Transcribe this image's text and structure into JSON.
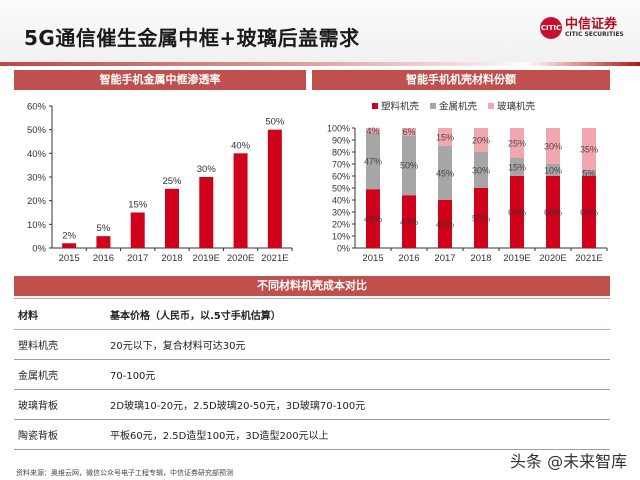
{
  "header": {
    "title": "5G通信催生金属中框+玻璃后盖需求",
    "logo_cn": "中信证券",
    "logo_en": "CITIC SECURITIES",
    "logo_mark": "CITIC"
  },
  "colors": {
    "accent_red": "#c0504d",
    "bar_red": "#d0021b",
    "metal_gray": "#a6a6a6",
    "glass_pink": "#f2a7b0"
  },
  "left_panel": {
    "title": "智能手机金属中框渗透率"
  },
  "right_panel": {
    "title": "智能手机机壳材料份额",
    "legend": [
      "塑料机壳",
      "金属机壳",
      "玻璃机壳"
    ]
  },
  "chart_data": [
    {
      "type": "bar",
      "title": "智能手机金属中框渗透率",
      "categories": [
        "2015",
        "2016",
        "2017",
        "2018",
        "2019E",
        "2020E",
        "2021E"
      ],
      "values": [
        2,
        5,
        15,
        25,
        30,
        40,
        50
      ],
      "data_labels": [
        "2%",
        "5%",
        "15%",
        "25%",
        "30%",
        "40%",
        "50%"
      ],
      "xlabel": "",
      "ylabel": "",
      "ylim": [
        0,
        60
      ],
      "yticks": [
        "0%",
        "10%",
        "20%",
        "30%",
        "40%",
        "50%",
        "60%"
      ],
      "grid": false,
      "legend": null
    },
    {
      "type": "bar",
      "stacked": true,
      "title": "智能手机机壳材料份额",
      "categories": [
        "2015",
        "2016",
        "2017",
        "2018",
        "2019E",
        "2020E",
        "2021E"
      ],
      "series": [
        {
          "name": "塑料机壳",
          "values": [
            49,
            44,
            40,
            50,
            60,
            60,
            60
          ]
        },
        {
          "name": "金属机壳",
          "values": [
            47,
            50,
            45,
            30,
            15,
            10,
            5
          ]
        },
        {
          "name": "玻璃机壳",
          "values": [
            4,
            6,
            15,
            20,
            25,
            30,
            35
          ]
        }
      ],
      "ylim": [
        0,
        100
      ],
      "yticks": [
        "0%",
        "10%",
        "20%",
        "30%",
        "40%",
        "50%",
        "60%",
        "70%",
        "80%",
        "90%",
        "100%"
      ],
      "legend_position": "top",
      "grid": false
    }
  ],
  "table": {
    "title": "不同材料机壳成本对比",
    "headers": [
      "材料",
      "基本价格（人民币，以.5寸手机估算）"
    ],
    "rows": [
      [
        "塑料机壳",
        "20元以下，复合材料可达30元"
      ],
      [
        "金属机壳",
        "70-100元"
      ],
      [
        "玻璃背板",
        "2D玻璃10-20元，2.5D玻璃20-50元，3D玻璃70-100元"
      ],
      [
        "陶瓷背板",
        "平板60元，2.5D造型100元，3D造型200元以上"
      ]
    ]
  },
  "footer": {
    "source": "资料来源：奥维云网，微信公众号电子工程专辑，中信证券研究部预测",
    "watermark": "头条 @未来智库"
  }
}
